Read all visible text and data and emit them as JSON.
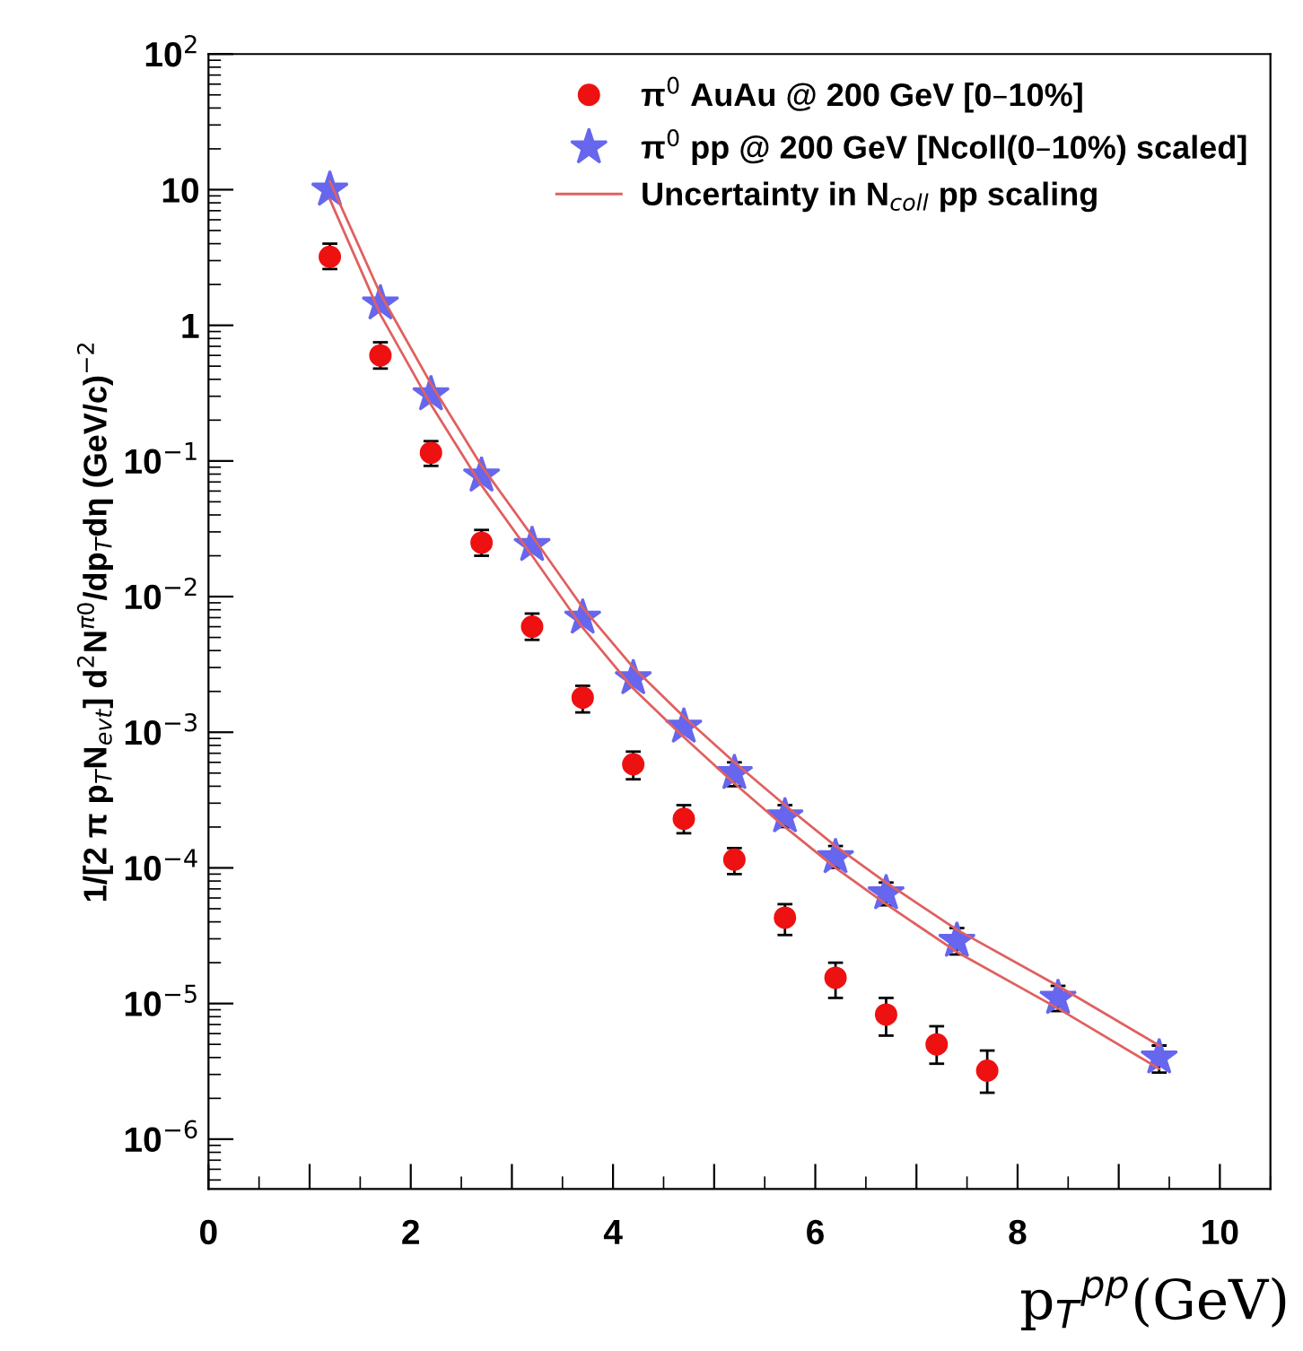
{
  "chart_data": {
    "type": "scatter",
    "ylabel": "1/[2 π p$_{T}$N$_{evt}$] d$^{2}$N$^{π0}$/dp$_{T}$dη (GeV/c)$^{−2}$",
    "xlabel": "p$_{T}$$^{pp}$(GeV)",
    "log": "y",
    "legend": "top right",
    "xlim": [
      0,
      10.5
    ],
    "ylim": [
      4.3e-07,
      100
    ],
    "xticks": [
      0,
      {
        "value": 1,
        "label": null
      },
      2,
      {
        "value": 3,
        "label": null
      },
      4,
      {
        "value": 5,
        "label": null
      },
      6,
      {
        "value": 7,
        "label": null
      },
      8,
      {
        "value": 9,
        "label": null
      },
      10
    ],
    "yticks": [
      {
        "value": 1e-06,
        "label": "10$^{−6}$"
      },
      {
        "value": 1e-05,
        "label": "10$^{−5}$"
      },
      {
        "value": 0.0001,
        "label": "10$^{−4}$"
      },
      {
        "value": 0.001,
        "label": "10$^{−3}$"
      },
      {
        "value": 0.01,
        "label": "10$^{−2}$"
      },
      {
        "value": 0.1,
        "label": "10$^{−1}$"
      },
      1,
      10,
      {
        "value": 100,
        "label": "10$^{2}$"
      }
    ],
    "series": [
      {
        "name": "π$^{0}$ AuAu @ 200 GeV [0–10%]",
        "color": "#ee1111",
        "marker": "circle",
        "x": [
          1.2,
          1.7,
          2.2,
          2.7,
          3.2,
          3.7,
          4.2,
          4.7,
          5.2,
          5.7,
          6.2,
          6.7,
          7.2,
          7.7
        ],
        "values": [
          3.2,
          0.6,
          0.115,
          0.025,
          0.006,
          0.0018,
          0.00058,
          0.00023,
          0.000115,
          4.3e-05,
          1.55e-05,
          8.3e-06,
          5e-06,
          3.2e-06
        ],
        "errors": [
          [
            2.6,
            4.0
          ],
          [
            0.48,
            0.75
          ],
          [
            0.092,
            0.14
          ],
          [
            0.02,
            0.031
          ],
          [
            0.0048,
            0.0075
          ],
          [
            0.0014,
            0.0022
          ],
          [
            0.00045,
            0.00072
          ],
          [
            0.00018,
            0.00029
          ],
          [
            9e-05,
            0.00014
          ],
          [
            3.2e-05,
            5.4e-05
          ],
          [
            1.1e-05,
            2e-05
          ],
          [
            5.8e-06,
            1.1e-05
          ],
          [
            3.6e-06,
            6.8e-06
          ],
          [
            2.2e-06,
            4.5e-06
          ]
        ]
      },
      {
        "name": "π$^{0}$ pp @ 200 GeV [Ncoll(0–10%) scaled]",
        "color": "#6666ee",
        "marker": "star",
        "x": [
          1.2,
          1.7,
          2.2,
          2.7,
          3.2,
          3.7,
          4.2,
          4.7,
          5.2,
          5.7,
          6.2,
          6.7,
          7.4,
          8.4,
          9.4
        ],
        "values": [
          10,
          1.45,
          0.31,
          0.078,
          0.024,
          0.007,
          0.0025,
          0.0011,
          0.0005,
          0.00024,
          0.00012,
          6.5e-05,
          2.9e-05,
          1.1e-05,
          4e-06
        ],
        "errors": [
          null,
          null,
          null,
          null,
          null,
          null,
          null,
          null,
          [
            0.0004,
            0.0006
          ],
          [
            0.0002,
            0.00029
          ],
          [
            0.0001,
            0.000145
          ],
          [
            5.3e-05,
            7.8e-05
          ],
          [
            2.3e-05,
            3.6e-05
          ],
          [
            8.8e-06,
            1.35e-05
          ],
          [
            3.1e-06,
            4.9e-06
          ]
        ]
      },
      {
        "name": "Uncertainty in N$_{coll}$ pp scaling",
        "color": "#e06060",
        "type": "line",
        "marker": "none",
        "x": [
          1.2,
          1.7,
          2.2,
          2.7,
          3.2,
          3.7,
          4.2,
          4.7,
          5.2,
          5.7,
          6.2,
          6.7,
          7.4,
          8.4,
          9.4
        ],
        "values": [
          11.5,
          1.7,
          0.37,
          0.092,
          0.028,
          0.0083,
          0.003,
          0.0013,
          0.0006,
          0.00029,
          0.000145,
          7.8e-05,
          3.5e-05,
          1.35e-05,
          4.9e-06
        ]
      },
      {
        "color": "#e06060",
        "type": "line",
        "marker": "none",
        "x": [
          1.2,
          1.7,
          2.2,
          2.7,
          3.2,
          3.7,
          4.2,
          4.7,
          5.2,
          5.7,
          6.2,
          6.7,
          7.4,
          8.4,
          9.4
        ],
        "values": [
          8.5,
          1.2,
          0.26,
          0.066,
          0.02,
          0.0059,
          0.0021,
          0.00092,
          0.00042,
          0.0002,
          0.0001,
          5.4e-05,
          2.4e-05,
          9.2e-06,
          3.3e-06
        ]
      }
    ]
  }
}
